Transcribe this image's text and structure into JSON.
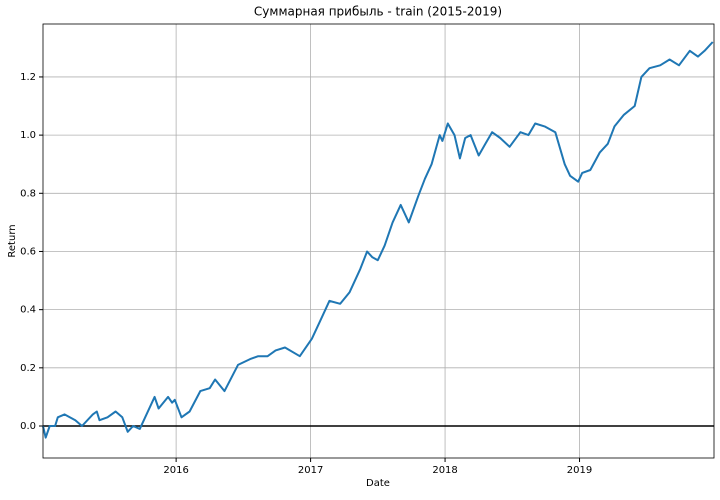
{
  "chart_data": {
    "type": "line",
    "title": "Суммарная прибыль - train (2015-2019)",
    "x_label": "Date",
    "y_label": "Return",
    "x": [
      2015.01,
      2015.03,
      2015.06,
      2015.1,
      2015.12,
      2015.17,
      2015.25,
      2015.3,
      2015.38,
      2015.41,
      2015.43,
      2015.49,
      2015.55,
      2015.6,
      2015.64,
      2015.68,
      2015.73,
      2015.84,
      2015.87,
      2015.94,
      2015.97,
      2015.99,
      2016.04,
      2016.1,
      2016.18,
      2016.25,
      2016.29,
      2016.36,
      2016.46,
      2016.55,
      2016.61,
      2016.68,
      2016.74,
      2016.81,
      2016.92,
      2017.01,
      2017.07,
      2017.14,
      2017.22,
      2017.29,
      2017.37,
      2017.42,
      2017.46,
      2017.5,
      2017.55,
      2017.61,
      2017.67,
      2017.73,
      2017.8,
      2017.85,
      2017.9,
      2017.96,
      2017.98,
      2018.02,
      2018.07,
      2018.11,
      2018.15,
      2018.19,
      2018.25,
      2018.3,
      2018.35,
      2018.41,
      2018.48,
      2018.56,
      2018.62,
      2018.67,
      2018.74,
      2018.82,
      2018.89,
      2018.93,
      2018.99,
      2019.02,
      2019.08,
      2019.15,
      2019.21,
      2019.26,
      2019.33,
      2019.41,
      2019.46,
      2019.52,
      2019.6,
      2019.67,
      2019.74,
      2019.82,
      2019.88,
      2019.93,
      2019.99
    ],
    "series": [
      {
        "name": "Return",
        "color": "#1f77b4",
        "values": [
          0.0,
          -0.04,
          0.0,
          0.0,
          0.03,
          0.04,
          0.02,
          0.0,
          0.04,
          0.05,
          0.02,
          0.03,
          0.05,
          0.03,
          -0.02,
          0.0,
          -0.01,
          0.1,
          0.06,
          0.1,
          0.08,
          0.09,
          0.03,
          0.05,
          0.12,
          0.13,
          0.16,
          0.12,
          0.21,
          0.23,
          0.24,
          0.24,
          0.26,
          0.27,
          0.24,
          0.3,
          0.36,
          0.43,
          0.42,
          0.46,
          0.54,
          0.6,
          0.58,
          0.57,
          0.62,
          0.7,
          0.76,
          0.7,
          0.79,
          0.85,
          0.9,
          1.0,
          0.98,
          1.04,
          1.0,
          0.92,
          0.99,
          1.0,
          0.93,
          0.97,
          1.01,
          0.99,
          0.96,
          1.01,
          1.0,
          1.04,
          1.03,
          1.01,
          0.9,
          0.86,
          0.84,
          0.87,
          0.88,
          0.94,
          0.97,
          1.03,
          1.07,
          1.1,
          1.2,
          1.23,
          1.24,
          1.26,
          1.24,
          1.29,
          1.27,
          1.29,
          1.32
        ]
      }
    ],
    "xlim": [
      2015.01,
      2020.0
    ],
    "xticks": [
      2016,
      2017,
      2018,
      2019
    ],
    "ylim": [
      -0.11,
      1.382
    ],
    "yticks": [
      {
        "value": 0,
        "label": "0.0"
      },
      0.2,
      0.4,
      0.6,
      0.8,
      {
        "value": 1,
        "label": "1.0"
      },
      1.2
    ],
    "hline": 0,
    "grid": true
  }
}
